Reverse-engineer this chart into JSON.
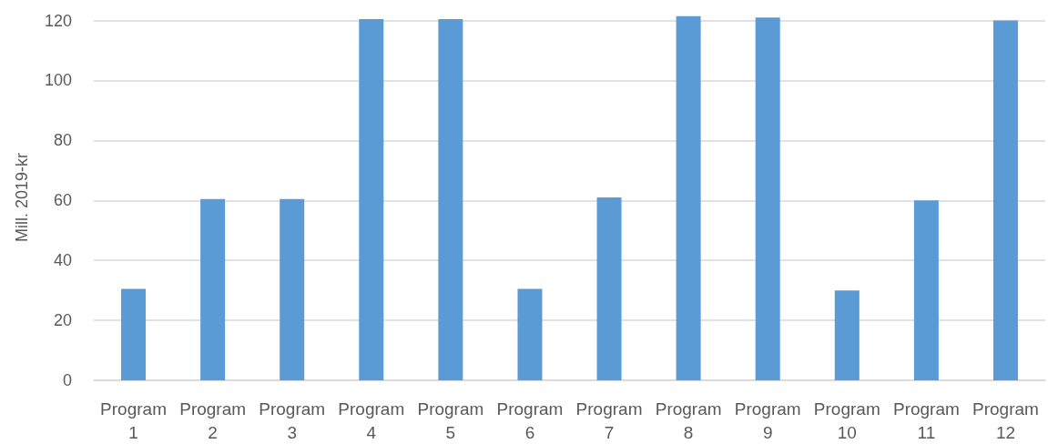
{
  "chart_data": {
    "type": "bar",
    "ylabel": "Mill. 2019-kr",
    "categories": [
      "Program 1",
      "Program 2",
      "Program 3",
      "Program 4",
      "Program 5",
      "Program 6",
      "Program 7",
      "Program 8",
      "Program 9",
      "Program 10",
      "Program 11",
      "Program 12"
    ],
    "values": [
      30.5,
      60.5,
      60.5,
      120.5,
      120.5,
      30.5,
      61,
      121.5,
      121,
      30,
      60,
      120
    ],
    "color": "#5b9bd5",
    "ylim": [
      0,
      122
    ],
    "yticks": [
      0,
      20,
      40,
      60,
      80,
      100,
      120
    ],
    "grid": "y"
  }
}
